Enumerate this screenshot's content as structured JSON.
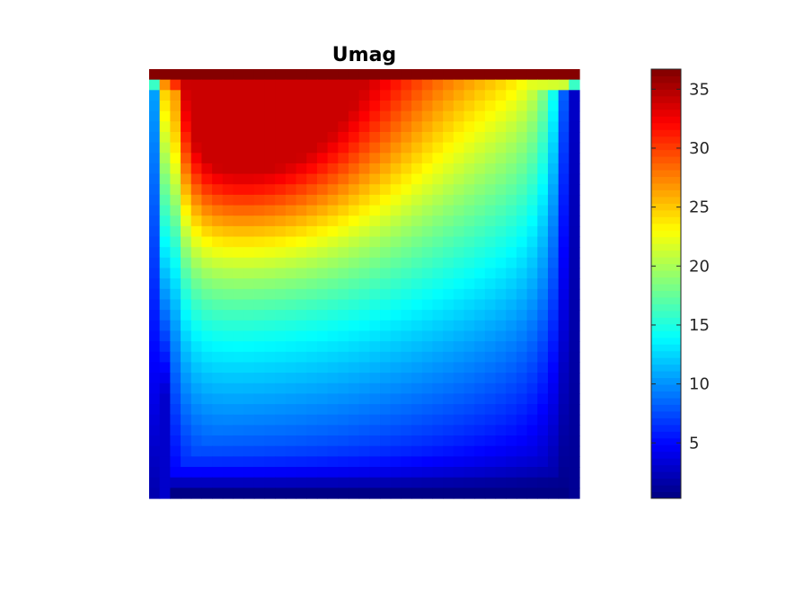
{
  "chart_data": {
    "type": "heatmap",
    "title": "Umag",
    "xlabel": "",
    "ylabel": "",
    "grid": false,
    "colormap": "jet",
    "color_range": [
      0.3,
      36.7
    ],
    "colorbar": {
      "ticks": [
        5,
        10,
        15,
        20,
        25,
        30,
        35
      ],
      "tick_labels": [
        "5",
        "10",
        "15",
        "20",
        "25",
        "30",
        "35"
      ],
      "placement": "right"
    },
    "grid_size": {
      "rows": 41,
      "cols": 41
    },
    "field_description": "lid-driven cavity velocity magnitude; maximum (~36) along the top lid row, high values (~30-33) in the upper-left interior, decreasing toward the bottom and right walls (~1)"
  }
}
